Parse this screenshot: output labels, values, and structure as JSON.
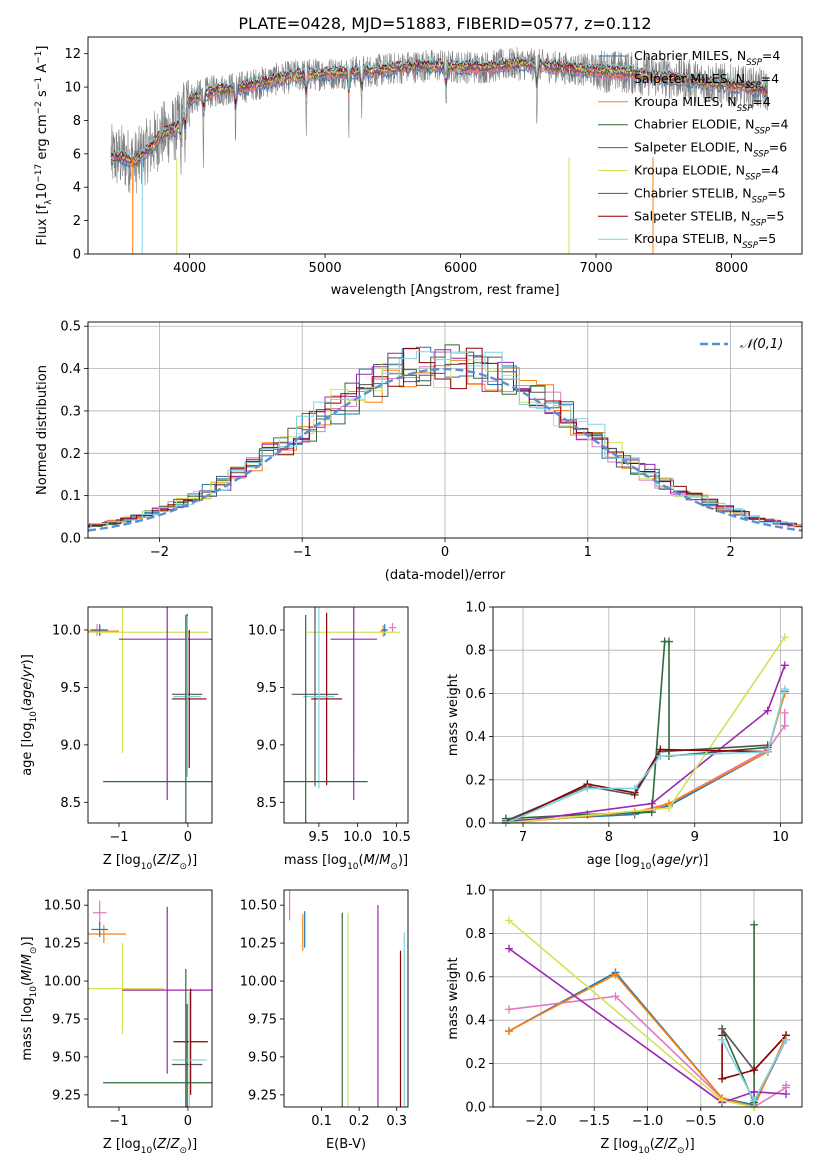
{
  "figure": {
    "title": "PLATE=0428, MJD=51883, FIBERID=0577, z=0.112"
  },
  "chart_data": [
    {
      "id": "spectrum",
      "type": "line",
      "title": "PLATE=0428, MJD=51883, FIBERID=0577, z=0.112",
      "xlabel": "wavelength [Angstrom, rest frame]",
      "ylabel": "Flux [f_λ10^-17 erg cm^-2 s^-1 A^-1]",
      "xlim": [
        3250,
        8520
      ],
      "ylim": [
        0,
        13
      ],
      "xticks": [
        4000,
        5000,
        6000,
        7000,
        8000
      ],
      "yticks": [
        0,
        2,
        4,
        6,
        8,
        10,
        12
      ],
      "grid": false,
      "legend_position": "right",
      "observed_color": "#808080",
      "series": [
        {
          "name": "Chabrier MILES, N_SSP=4",
          "color": "#1f77b4",
          "values": []
        },
        {
          "name": "Salpeter MILES, N_SSP=4",
          "color": "#e377c2",
          "values": []
        },
        {
          "name": "Kroupa MILES, N_SSP=4",
          "color": "#ff7f0e",
          "values": []
        },
        {
          "name": "Chabrier ELODIE, N_SSP=4",
          "color": "#2e6b3a",
          "values": []
        },
        {
          "name": "Salpeter ELODIE, N_SSP=6",
          "color": "#9c27b0",
          "values": []
        },
        {
          "name": "Kroupa ELODIE, N_SSP=4",
          "color": "#d4e157",
          "values": []
        },
        {
          "name": "Chabrier STELIB, N_SSP=5",
          "color": "#555555",
          "values": []
        },
        {
          "name": "Salpeter STELIB, N_SSP=5",
          "color": "#8b0000",
          "values": []
        },
        {
          "name": "Kroupa STELIB, N_SSP=5",
          "color": "#7fd3e0",
          "values": []
        }
      ],
      "model_continuum": {
        "x": [
          3400,
          3500,
          3600,
          3700,
          3800,
          3900,
          4000,
          4200,
          4400,
          4600,
          4800,
          5000,
          5200,
          5400,
          5600,
          5800,
          6000,
          6200,
          6400,
          6600,
          6800,
          7000,
          7200,
          7400,
          7600,
          7800,
          8000,
          8270
        ],
        "y": [
          5.8,
          5.8,
          5.5,
          6.3,
          7.2,
          7.5,
          9.3,
          9.8,
          10.0,
          10.4,
          10.7,
          10.8,
          10.9,
          11.0,
          11.2,
          11.3,
          11.2,
          11.2,
          11.4,
          11.3,
          11.1,
          11.0,
          10.9,
          10.7,
          10.5,
          10.3,
          10.1,
          9.8
        ]
      }
    },
    {
      "id": "residuals",
      "type": "histogram",
      "xlabel": "(data-model)/error",
      "ylabel": "Normed distribution",
      "xlim": [
        -2.5,
        2.5
      ],
      "ylim": [
        0,
        0.51
      ],
      "xticks": [
        -2,
        -1,
        0,
        1,
        2
      ],
      "yticks": [
        0.0,
        0.1,
        0.2,
        0.3,
        0.4,
        0.5
      ],
      "grid": true,
      "legend_position": "top-right",
      "reference_label": "𝒩(0,1)",
      "reference_color": "#5a8fd6"
    },
    {
      "id": "age_vs_Z",
      "type": "scatter",
      "xlabel": "Z [log10(Z/Z⊙)]",
      "ylabel": "age [log10(age/yr)]",
      "xlim": [
        -1.45,
        0.35
      ],
      "ylim": [
        8.32,
        10.2
      ],
      "xticks": [
        -1,
        0
      ],
      "yticks": [
        8.5,
        9.0,
        9.5,
        10.0
      ],
      "grid": false,
      "points": [
        {
          "x": -1.32,
          "y": 10.0,
          "xerr": 0.1,
          "yerr": 0.05,
          "color": "#e377c2"
        },
        {
          "x": -1.28,
          "y": 9.99,
          "xerr": 0.28,
          "yerr": 0.04,
          "color": "#ff7f0e"
        },
        {
          "x": -1.28,
          "y": 10.0,
          "xerr": 0.12,
          "yerr": 0.05,
          "color": "#1f77b4"
        },
        {
          "x": -0.95,
          "y": 9.98,
          "xerr": 1.25,
          "yerr": 1.05,
          "color": "#d4e157"
        },
        {
          "x": -0.3,
          "y": 9.92,
          "xerr": 0.7,
          "yerr": 1.4,
          "color": "#9c27b0"
        },
        {
          "x": -0.01,
          "y": 9.44,
          "xerr": 0.22,
          "yerr": 0.7,
          "color": "#555555"
        },
        {
          "x": 0.02,
          "y": 9.4,
          "xerr": 0.25,
          "yerr": 0.6,
          "color": "#8b0000"
        },
        {
          "x": -0.01,
          "y": 9.42,
          "xerr": 0.2,
          "yerr": 0.7,
          "color": "#7fd3e0"
        },
        {
          "x": -0.03,
          "y": 8.68,
          "xerr": 1.2,
          "yerr": 1.45,
          "color": "#2e6b3a"
        }
      ]
    },
    {
      "id": "age_vs_mass",
      "type": "scatter",
      "xlabel": "mass [log10(M/M⊙)]",
      "ylabel": "",
      "xlim": [
        9.05,
        10.65
      ],
      "ylim": [
        8.32,
        10.2
      ],
      "xticks": [
        9.5,
        10.0,
        10.5
      ],
      "yticks": [
        8.5,
        9.0,
        9.5,
        10.0
      ],
      "grid": false,
      "points": [
        {
          "x": 10.45,
          "y": 10.02,
          "xerr": 0.05,
          "yerr": 0.04,
          "color": "#e377c2"
        },
        {
          "x": 10.33,
          "y": 9.99,
          "xerr": 0.04,
          "yerr": 0.05,
          "color": "#ff7f0e"
        },
        {
          "x": 10.35,
          "y": 10.0,
          "xerr": 0.04,
          "yerr": 0.05,
          "color": "#1f77b4"
        },
        {
          "x": 9.95,
          "y": 9.98,
          "xerr": 0.6,
          "yerr": 1.1,
          "color": "#d4e157"
        },
        {
          "x": 9.95,
          "y": 9.92,
          "xerr": 0.3,
          "yerr": 1.4,
          "color": "#9c27b0"
        },
        {
          "x": 9.45,
          "y": 9.44,
          "xerr": 0.3,
          "yerr": 0.8,
          "color": "#555555"
        },
        {
          "x": 9.6,
          "y": 9.4,
          "xerr": 0.2,
          "yerr": 0.75,
          "color": "#8b0000"
        },
        {
          "x": 9.5,
          "y": 9.42,
          "xerr": 0.2,
          "yerr": 0.8,
          "color": "#7fd3e0"
        },
        {
          "x": 9.33,
          "y": 8.68,
          "xerr": 0.8,
          "yerr": 1.45,
          "color": "#2e6b3a"
        }
      ]
    },
    {
      "id": "weight_vs_age",
      "type": "line",
      "xlabel": "age [log10(age/yr)]",
      "ylabel": "mass weight",
      "xlim": [
        6.65,
        10.25
      ],
      "ylim": [
        0,
        1.0
      ],
      "xticks": [
        7,
        8,
        9,
        10
      ],
      "yticks": [
        0.0,
        0.2,
        0.4,
        0.6,
        0.8,
        1.0
      ],
      "grid": true,
      "series": [
        {
          "color": "#1f77b4",
          "x": [
            6.8,
            8.3,
            8.7,
            9.85,
            10.05
          ],
          "y": [
            0.01,
            0.04,
            0.08,
            0.33,
            0.61
          ]
        },
        {
          "color": "#e377c2",
          "x": [
            6.8,
            8.5,
            8.7,
            9.85,
            10.05,
            10.05
          ],
          "y": [
            0.0,
            0.06,
            0.09,
            0.34,
            0.45,
            0.51
          ]
        },
        {
          "color": "#ff7f0e",
          "x": [
            6.8,
            8.3,
            8.7,
            9.85,
            10.05
          ],
          "y": [
            0.0,
            0.05,
            0.09,
            0.33,
            0.6
          ]
        },
        {
          "color": "#2e6b3a",
          "x": [
            6.8,
            7.75,
            8.5,
            8.65,
            8.7,
            8.7,
            9.85
          ],
          "y": [
            0.02,
            0.04,
            0.05,
            0.84,
            0.84,
            0.31,
            0.35
          ]
        },
        {
          "color": "#9c27b0",
          "x": [
            6.8,
            8.5,
            9.85,
            10.05
          ],
          "y": [
            0.0,
            0.09,
            0.52,
            0.73
          ]
        },
        {
          "color": "#d4e157",
          "x": [
            6.8,
            8.7,
            10.05
          ],
          "y": [
            0.0,
            0.07,
            0.86
          ]
        },
        {
          "color": "#555555",
          "x": [
            6.8,
            7.75,
            8.3,
            8.6,
            9.85
          ],
          "y": [
            0.01,
            0.17,
            0.13,
            0.33,
            0.36
          ]
        },
        {
          "color": "#8b0000",
          "x": [
            6.8,
            7.75,
            8.3,
            8.6,
            9.85
          ],
          "y": [
            0.0,
            0.18,
            0.14,
            0.34,
            0.33
          ]
        },
        {
          "color": "#7fd3e0",
          "x": [
            6.8,
            7.75,
            8.3,
            8.6,
            9.85,
            10.05
          ],
          "y": [
            0.0,
            0.16,
            0.16,
            0.31,
            0.33,
            0.62
          ]
        }
      ]
    },
    {
      "id": "mass_vs_Z",
      "type": "scatter",
      "xlabel": "Z [log10(Z/Z⊙)]",
      "ylabel": "mass [log10(M/M⊙)]",
      "xlim": [
        -1.45,
        0.35
      ],
      "ylim": [
        9.17,
        10.6
      ],
      "xticks": [
        -1,
        0
      ],
      "yticks": [
        9.25,
        9.5,
        9.75,
        10.0,
        10.25,
        10.5
      ],
      "grid": false,
      "points": [
        {
          "x": -1.28,
          "y": 10.45,
          "xerr": 0.1,
          "yerr": 0.08,
          "color": "#e377c2"
        },
        {
          "x": -1.22,
          "y": 10.31,
          "xerr": 0.32,
          "yerr": 0.06,
          "color": "#ff7f0e"
        },
        {
          "x": -1.28,
          "y": 10.34,
          "xerr": 0.12,
          "yerr": 0.05,
          "color": "#1f77b4"
        },
        {
          "x": -0.95,
          "y": 9.95,
          "xerr": 0.6,
          "yerr": 0.3,
          "color": "#d4e157"
        },
        {
          "x": -0.3,
          "y": 9.94,
          "xerr": 0.65,
          "yerr": 0.55,
          "color": "#9c27b0"
        },
        {
          "x": -0.01,
          "y": 9.45,
          "xerr": 0.22,
          "yerr": 0.4,
          "color": "#555555"
        },
        {
          "x": 0.04,
          "y": 9.6,
          "xerr": 0.25,
          "yerr": 0.35,
          "color": "#8b0000"
        },
        {
          "x": 0.02,
          "y": 9.48,
          "xerr": 0.25,
          "yerr": 0.45,
          "color": "#7fd3e0"
        },
        {
          "x": -0.03,
          "y": 9.33,
          "xerr": 1.2,
          "yerr": 0.75,
          "color": "#2e6b3a"
        }
      ]
    },
    {
      "id": "mass_vs_ebv",
      "type": "scatter",
      "xlabel": "E(B-V)",
      "ylabel": "",
      "xlim": [
        0.0,
        0.33
      ],
      "ylim": [
        9.17,
        10.6
      ],
      "xticks": [
        0.1,
        0.2,
        0.3
      ],
      "yticks": [
        9.25,
        9.5,
        9.75,
        10.0,
        10.25,
        10.5
      ],
      "grid": false,
      "points": [
        {
          "x": 0.015,
          "y": 10.5,
          "xerr": 0,
          "yerr": 0.1,
          "color": "#e377c2"
        },
        {
          "x": 0.05,
          "y": 10.32,
          "xerr": 0,
          "yerr": 0.12,
          "color": "#ff7f0e"
        },
        {
          "x": 0.055,
          "y": 10.34,
          "xerr": 0,
          "yerr": 0.12,
          "color": "#1f77b4"
        },
        {
          "x": 0.17,
          "y": 9.65,
          "xerr": 0,
          "yerr": 0.8,
          "color": "#d4e157"
        },
        {
          "x": 0.25,
          "y": 9.8,
          "xerr": 0,
          "yerr": 0.7,
          "color": "#9c27b0"
        },
        {
          "x": 0.31,
          "y": 9.6,
          "xerr": 0,
          "yerr": 0.6,
          "color": "#8b0000"
        },
        {
          "x": 0.32,
          "y": 9.62,
          "xerr": 0,
          "yerr": 0.7,
          "color": "#7fd3e0"
        },
        {
          "x": 0.155,
          "y": 9.7,
          "xerr": 0,
          "yerr": 0.75,
          "color": "#2e6b3a"
        }
      ]
    },
    {
      "id": "weight_vs_Z",
      "type": "line",
      "xlabel": "Z [log10(Z/Z⊙)]",
      "ylabel": "mass weight",
      "xlim": [
        -2.45,
        0.45
      ],
      "ylim": [
        0,
        1.0
      ],
      "xticks": [
        -2.0,
        -1.5,
        -1.0,
        -0.5,
        0.0
      ],
      "yticks": [
        0.0,
        0.2,
        0.4,
        0.6,
        0.8,
        1.0
      ],
      "grid": true,
      "series": [
        {
          "color": "#1f77b4",
          "x": [
            -2.3,
            -1.3,
            -0.3,
            0.0,
            0.3
          ],
          "y": [
            0.35,
            0.62,
            0.04,
            0.01,
            0.31
          ]
        },
        {
          "color": "#e377c2",
          "x": [
            -2.3,
            -1.3,
            -0.3,
            0.0,
            0.3,
            0.3
          ],
          "y": [
            0.45,
            0.51,
            0.04,
            0.0,
            0.09,
            0.1
          ]
        },
        {
          "color": "#ff7f0e",
          "x": [
            -2.3,
            -1.3,
            -0.3,
            0.0,
            0.3
          ],
          "y": [
            0.35,
            0.61,
            0.04,
            0.0,
            0.33
          ]
        },
        {
          "color": "#2e6b3a",
          "x": [
            -0.3,
            0.0,
            0.0,
            0.0
          ],
          "y": [
            0.36,
            0.02,
            0.84,
            0.03
          ]
        },
        {
          "color": "#9c27b0",
          "x": [
            -2.3,
            -0.3,
            0.0,
            0.3
          ],
          "y": [
            0.73,
            0.02,
            0.07,
            0.06
          ]
        },
        {
          "color": "#d4e157",
          "x": [
            -2.3,
            -0.3,
            0.0
          ],
          "y": [
            0.86,
            0.03,
            0.0
          ]
        },
        {
          "color": "#555555",
          "x": [
            -0.3,
            0.0,
            0.3
          ],
          "y": [
            0.36,
            0.17,
            0.33
          ]
        },
        {
          "color": "#8b0000",
          "x": [
            -0.3,
            -0.3,
            0.0,
            0.3
          ],
          "y": [
            0.33,
            0.13,
            0.17,
            0.33
          ]
        },
        {
          "color": "#7fd3e0",
          "x": [
            -0.3,
            0.0,
            0.3
          ],
          "y": [
            0.31,
            0.03,
            0.31
          ]
        }
      ]
    }
  ]
}
